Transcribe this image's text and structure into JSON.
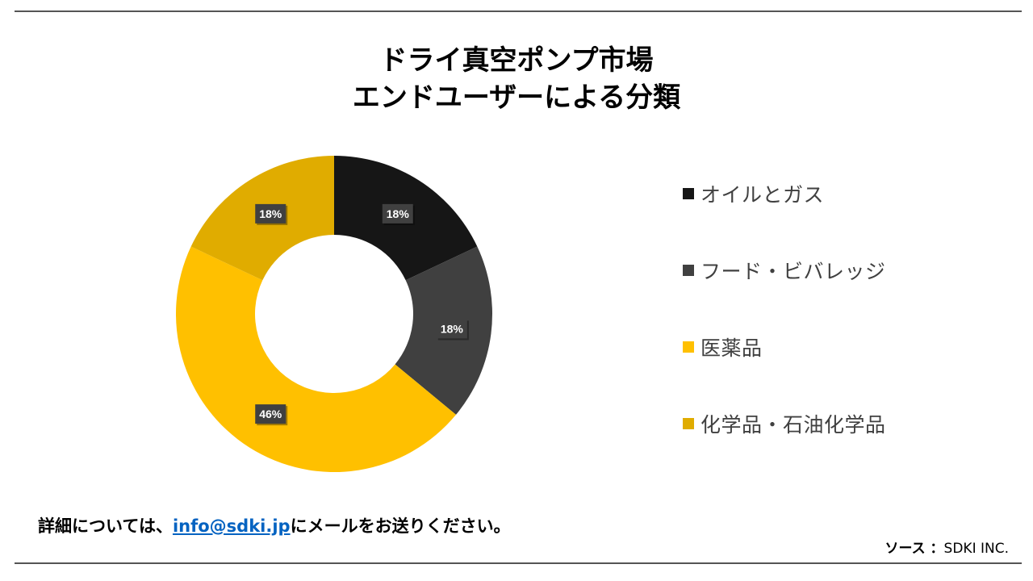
{
  "title": {
    "line1": "ドライ真空ポンプ市場",
    "line2": "エンドユーザーによる分類"
  },
  "chart_data": {
    "type": "pie",
    "donut": true,
    "title": "ドライ真空ポンプ市場 エンドユーザーによる分類",
    "categories": [
      "オイルとガス",
      "フード・ビバレッジ",
      "医薬品",
      "化学品・石油化学品"
    ],
    "values": [
      18,
      18,
      46,
      18
    ],
    "value_labels": [
      "18%",
      "18%",
      "46%",
      "18%"
    ],
    "colors": [
      "#161616",
      "#404040",
      "#ffc000",
      "#e0ac00"
    ],
    "legend_position": "right"
  },
  "footer": {
    "contact_prefix": "詳細については、",
    "contact_link": "info@sdki.jp",
    "contact_suffix": "にメールをお送りください。",
    "source_label": "ソース ：",
    "source_value": "SDKI INC."
  }
}
